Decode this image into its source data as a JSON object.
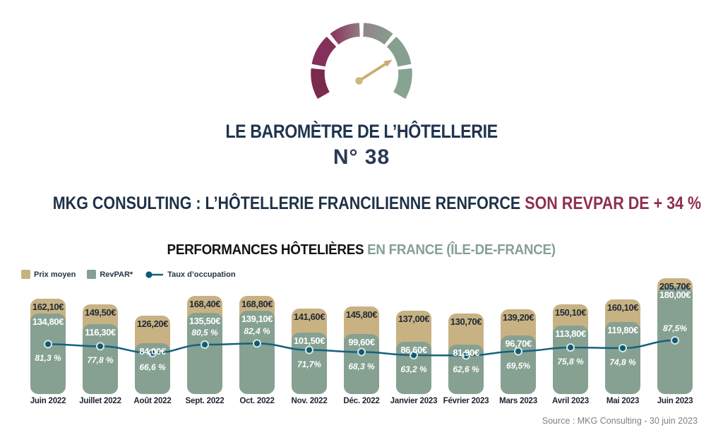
{
  "header": {
    "title": "LE BAROMÈTRE DE L’HÔTELLERIE",
    "issue_number": "N° 38",
    "headline": "MKG CONSULTING : L’HÔTELLERIE FRANCILIENNE RENFORCE ",
    "headline_accent": "SON REVPAR DE + 34 %"
  },
  "chart_header": {
    "title_main": "PERFORMANCES HÔTELIÈRES ",
    "title_accent": "EN FRANCE (ÎLE-DE-FRANCE)"
  },
  "legend": {
    "prix_moyen": "Prix moyen",
    "revpar": "RevPAR*",
    "taux_occupation": "Taux d’occupation"
  },
  "chart_data": {
    "type": "bar+line",
    "title": "PERFORMANCES HÔTELIÈRES EN FRANCE (ÎLE-DE-FRANCE)",
    "legend_position": "top-left",
    "grid": false,
    "categories": [
      "Juin 2022",
      "Juillet 2022",
      "Août 2022",
      "Sept. 2022",
      "Oct. 2022",
      "Nov. 2022",
      "Déc. 2022",
      "Janvier 2023",
      "Février 2023",
      "Mars 2023",
      "Avril 2023",
      "Mai 2023",
      "Juin 2023"
    ],
    "series": [
      {
        "name": "Prix moyen",
        "type": "bar",
        "unit": "EUR",
        "color": "#c8b283",
        "values": [
          162.1,
          149.5,
          126.2,
          168.4,
          168.8,
          141.6,
          145.8,
          137.0,
          130.7,
          139.2,
          150.1,
          160.1,
          205.7
        ],
        "labels": [
          "162,10€",
          "149,50€",
          "126,20€",
          "168,40€",
          "168,80€",
          "141,60€",
          "145,80€",
          "137,00€",
          "130,70€",
          "139,20€",
          "150,10€",
          "160,10€",
          "205,70€"
        ]
      },
      {
        "name": "RevPAR",
        "type": "bar",
        "unit": "EUR",
        "color": "#86a192",
        "values": [
          134.8,
          116.3,
          84.0,
          135.5,
          139.1,
          101.5,
          99.6,
          86.6,
          81.9,
          96.7,
          113.8,
          119.8,
          180.0
        ],
        "labels": [
          "134,80€",
          "116,30€",
          "84,00€",
          "135,50€",
          "139,10€",
          "101,50€",
          "99,60€",
          "86,60€",
          "81,90€",
          "96,70€",
          "113,80€",
          "119,80€",
          "180,00€"
        ]
      },
      {
        "name": "Taux d’occupation",
        "type": "line",
        "unit": "%",
        "color": "#15617f",
        "values": [
          81.3,
          77.8,
          66.6,
          80.5,
          82.4,
          71.7,
          68.3,
          63.2,
          62.6,
          69.5,
          75.8,
          74.8,
          87.5
        ],
        "labels": [
          "81,3 %",
          "77,8 %",
          "66,6 %",
          "80,5 %",
          "82,4 %",
          "71,7%",
          "68,3 %",
          "63,2 %",
          "62,6 %",
          "69,5%",
          "75,8 %",
          "74,8 %",
          "87,5%"
        ],
        "label_above": [
          false,
          false,
          false,
          true,
          true,
          false,
          false,
          false,
          false,
          false,
          false,
          false,
          true
        ]
      }
    ]
  },
  "footer": {
    "source": "Source : MKG Consulting - 30 juin 2023"
  },
  "colors": {
    "navy": "#20344f",
    "maroon_accent": "#8e2f50",
    "tan": "#c8b283",
    "sage": "#86a192",
    "teal_line": "#15617f",
    "dot_fill": "#0d5a78",
    "dot_ring": "#d9e6e0",
    "source_gray": "#818181",
    "gauge_segments": [
      "#7a2a4c",
      "#85305a",
      "#8c3b60→#937a85",
      "#90858b→#879a8b",
      "#86a08f",
      "#87a392"
    ],
    "gauge_needle": "#c9ac70"
  }
}
